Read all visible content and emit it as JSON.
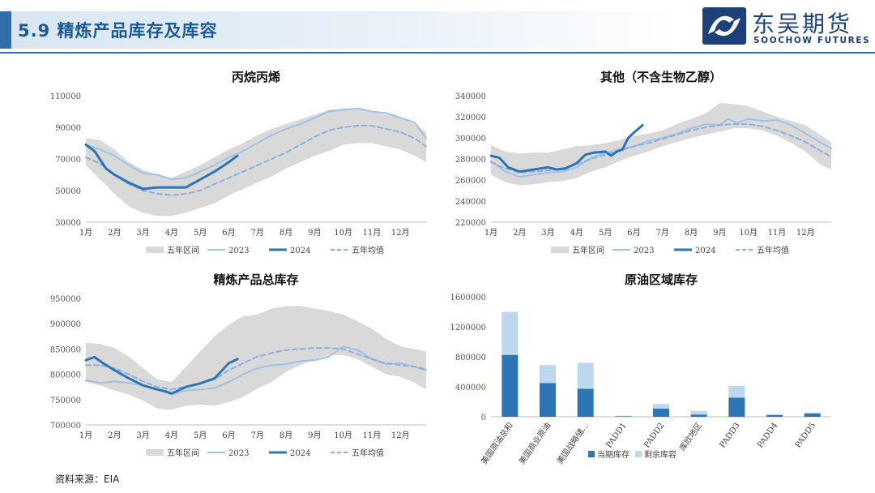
{
  "header": {
    "title": "5.9 精炼产品库存及库容",
    "logo_cn": "东吴期货",
    "logo_en": "SOOCHOW FUTURES"
  },
  "source": "资料来源：EIA",
  "colors": {
    "band": "#d9d9d9",
    "line2023": "#9dc3e6",
    "line2024": "#2e75b6",
    "avg": "#8fb0de",
    "bar_current": "#2e75b6",
    "bar_remaining": "#bdd7ee"
  },
  "chart_data": [
    {
      "id": "propylene",
      "type": "line",
      "title": "丙烷丙烯",
      "ylim": [
        30000,
        110000
      ],
      "yticks": [
        30000,
        50000,
        70000,
        90000,
        110000
      ],
      "ytick_labels": [
        "30000",
        "50000",
        "70000",
        "90000",
        "110000"
      ],
      "xlim": [
        1,
        12.9
      ],
      "x_tick_labels": [
        "1月",
        "2月",
        "3月",
        "4月",
        "5月",
        "6月",
        "7月",
        "8月",
        "9月",
        "10月",
        "11月",
        "12月"
      ],
      "legend": [
        "五年区间",
        "2023",
        "2024",
        "五年均值"
      ],
      "band": {
        "x": [
          1,
          1.5,
          2,
          2.5,
          3,
          3.5,
          4,
          4.5,
          5,
          5.5,
          6,
          6.5,
          7,
          7.5,
          8,
          8.5,
          9,
          9.5,
          10,
          10.5,
          11,
          11.5,
          12,
          12.5,
          12.9
        ],
        "low": [
          66000,
          57000,
          48000,
          40000,
          36000,
          34000,
          34000,
          36000,
          39000,
          42000,
          47000,
          51000,
          55000,
          59000,
          64000,
          68000,
          72000,
          75000,
          79000,
          80000,
          80000,
          78000,
          76000,
          72000,
          68000
        ],
        "high": [
          83000,
          82000,
          76000,
          68000,
          63000,
          60000,
          58000,
          62000,
          66000,
          71000,
          76000,
          80000,
          85000,
          89000,
          92000,
          95000,
          98000,
          101000,
          102000,
          102000,
          100000,
          98000,
          96000,
          92000,
          87000
        ]
      },
      "series": [
        {
          "name": "2023",
          "x": [
            1,
            1.5,
            2,
            2.5,
            3,
            3.5,
            4,
            4.5,
            5,
            5.5,
            6,
            6.5,
            7,
            7.5,
            8,
            8.5,
            9,
            9.5,
            10,
            10.5,
            11,
            11.5,
            12,
            12.5,
            12.9
          ],
          "values": [
            79000,
            76000,
            72000,
            66000,
            61000,
            60000,
            57000,
            58000,
            62000,
            66000,
            71000,
            75000,
            80000,
            85000,
            89000,
            92000,
            96000,
            100000,
            101000,
            102000,
            100000,
            99000,
            96000,
            93000,
            83000
          ]
        },
        {
          "name": "2024",
          "x": [
            1,
            1.3,
            1.7,
            2,
            2.5,
            3,
            3.5,
            4,
            4.5,
            5,
            5.5,
            6,
            6.3
          ],
          "values": [
            79000,
            75000,
            64000,
            60000,
            55000,
            51000,
            52000,
            52000,
            52000,
            57000,
            62000,
            68000,
            72000
          ]
        },
        {
          "name": "五年均值",
          "x": [
            1,
            1.5,
            2,
            2.5,
            3,
            3.5,
            4,
            4.5,
            5,
            5.5,
            6,
            6.5,
            7,
            7.5,
            8,
            8.5,
            9,
            9.5,
            10,
            10.5,
            11,
            11.5,
            12,
            12.5,
            12.9
          ],
          "values": [
            71000,
            67000,
            60000,
            54000,
            50000,
            48000,
            47000,
            48000,
            50000,
            54000,
            58000,
            62000,
            66000,
            70000,
            74000,
            79000,
            84000,
            88000,
            90000,
            91000,
            91000,
            89000,
            87000,
            83000,
            78000
          ]
        }
      ]
    },
    {
      "id": "other",
      "type": "line",
      "title": "其他（不含生物乙醇）",
      "ylim": [
        220000,
        340000
      ],
      "yticks": [
        220000,
        240000,
        260000,
        280000,
        300000,
        320000,
        340000
      ],
      "ytick_labels": [
        "220000",
        "240000",
        "260000",
        "280000",
        "300000",
        "320000",
        "340000"
      ],
      "xlim": [
        1,
        12.9
      ],
      "x_tick_labels": [
        "1月",
        "2月",
        "3月",
        "4月",
        "5月",
        "6月",
        "7月",
        "8月",
        "9月",
        "10月",
        "11月",
        "12月"
      ],
      "legend": [
        "五年区间",
        "2023",
        "2024",
        "五年均值"
      ],
      "band": {
        "x": [
          1,
          1.5,
          2,
          2.5,
          3,
          3.5,
          4,
          4.5,
          5,
          5.5,
          6,
          6.5,
          7,
          7.5,
          8,
          8.5,
          9,
          9.5,
          10,
          10.5,
          11,
          11.5,
          12,
          12.5,
          12.9
        ],
        "low": [
          265000,
          258000,
          255000,
          256000,
          258000,
          259000,
          262000,
          268000,
          272000,
          278000,
          283000,
          287000,
          292000,
          296000,
          300000,
          303000,
          306000,
          309000,
          309000,
          307000,
          302000,
          295000,
          287000,
          275000,
          270000
        ],
        "high": [
          293000,
          287000,
          285000,
          286000,
          286000,
          289000,
          292000,
          293000,
          295000,
          298000,
          302000,
          304000,
          307000,
          313000,
          318000,
          323000,
          333000,
          332000,
          330000,
          325000,
          320000,
          316000,
          312000,
          303000,
          296000
        ]
      },
      "series": [
        {
          "name": "2023",
          "x": [
            1,
            1.5,
            2,
            2.5,
            3,
            3.5,
            4,
            4.5,
            5,
            5.5,
            6,
            6.5,
            7,
            7.5,
            8,
            8.5,
            9,
            9.3,
            9.6,
            10,
            10.5,
            11,
            11.5,
            12,
            12.5,
            12.9
          ],
          "values": [
            278000,
            268000,
            263000,
            265000,
            267000,
            268000,
            272000,
            281000,
            286000,
            289000,
            292000,
            297000,
            300000,
            304000,
            309000,
            313000,
            312000,
            318000,
            314000,
            318000,
            316000,
            317000,
            312000,
            304000,
            296000,
            290000
          ]
        },
        {
          "name": "2024",
          "x": [
            1,
            1.3,
            1.6,
            2,
            2.5,
            3,
            3.3,
            3.6,
            4,
            4.3,
            4.6,
            5,
            5.2,
            5.4,
            5.6,
            5.8,
            6,
            6.3
          ],
          "values": [
            283000,
            281000,
            272000,
            268000,
            270000,
            272000,
            270000,
            271000,
            276000,
            284000,
            286000,
            287000,
            283000,
            287000,
            289000,
            300000,
            305000,
            312000
          ]
        },
        {
          "name": "五年均值",
          "x": [
            1,
            1.5,
            2,
            2.5,
            3,
            3.5,
            4,
            4.5,
            5,
            5.5,
            6,
            6.5,
            7,
            7.5,
            8,
            8.5,
            9,
            9.5,
            10,
            10.5,
            11,
            11.5,
            12,
            12.5,
            12.9
          ],
          "values": [
            277000,
            271000,
            267000,
            268000,
            269000,
            270000,
            275000,
            280000,
            284000,
            288000,
            292000,
            295000,
            299000,
            303000,
            307000,
            310000,
            312000,
            313000,
            313000,
            311000,
            307000,
            302000,
            296000,
            288000,
            282000
          ]
        }
      ]
    },
    {
      "id": "total",
      "type": "line",
      "title": "精炼产品总库存",
      "ylim": [
        700000,
        950000
      ],
      "yticks": [
        700000,
        750000,
        800000,
        850000,
        900000,
        950000
      ],
      "ytick_labels": [
        "700000",
        "750000",
        "800000",
        "850000",
        "900000",
        "950000"
      ],
      "xlim": [
        1,
        12.9
      ],
      "x_tick_labels": [
        "1月",
        "2月",
        "3月",
        "4月",
        "5月",
        "6月",
        "7月",
        "8月",
        "9月",
        "10月",
        "11月",
        "12月"
      ],
      "legend": [
        "五年区间",
        "2023",
        "2024",
        "五年均值"
      ],
      "band": {
        "x": [
          1,
          1.5,
          2,
          2.5,
          3,
          3.5,
          4,
          4.5,
          5,
          5.5,
          6,
          6.5,
          7,
          7.5,
          8,
          8.5,
          9,
          9.5,
          10,
          10.5,
          11,
          11.5,
          12,
          12.5,
          12.9
        ],
        "low": [
          785000,
          778000,
          768000,
          760000,
          748000,
          732000,
          730000,
          738000,
          740000,
          738000,
          745000,
          755000,
          772000,
          785000,
          805000,
          818000,
          830000,
          838000,
          838000,
          830000,
          815000,
          800000,
          795000,
          783000,
          770000
        ],
        "high": [
          862000,
          860000,
          852000,
          835000,
          812000,
          790000,
          785000,
          815000,
          845000,
          875000,
          898000,
          915000,
          918000,
          930000,
          935000,
          935000,
          930000,
          925000,
          918000,
          905000,
          890000,
          870000,
          855000,
          850000,
          845000
        ]
      },
      "series": [
        {
          "name": "2023",
          "x": [
            1,
            1.5,
            2,
            2.5,
            3,
            3.5,
            4,
            4.5,
            5,
            5.5,
            6,
            6.5,
            7,
            7.5,
            8,
            8.5,
            9,
            9.5,
            10,
            10.5,
            11,
            11.5,
            12,
            12.5,
            12.9
          ],
          "values": [
            788000,
            783000,
            786000,
            783000,
            778000,
            770000,
            760000,
            768000,
            770000,
            773000,
            785000,
            800000,
            812000,
            818000,
            820000,
            826000,
            828000,
            835000,
            855000,
            848000,
            830000,
            820000,
            822000,
            815000,
            808000
          ]
        },
        {
          "name": "2024",
          "x": [
            1,
            1.3,
            1.6,
            2,
            2.5,
            3,
            3.5,
            3.8,
            4,
            4.5,
            5,
            5.5,
            5.8,
            6,
            6.3
          ],
          "values": [
            828000,
            834000,
            822000,
            808000,
            792000,
            778000,
            770000,
            766000,
            762000,
            775000,
            782000,
            792000,
            810000,
            822000,
            830000
          ]
        },
        {
          "name": "五年均值",
          "x": [
            1,
            1.5,
            2,
            2.5,
            3,
            3.5,
            4,
            4.5,
            5,
            5.5,
            6,
            6.5,
            7,
            7.5,
            8,
            8.5,
            9,
            9.5,
            10,
            10.5,
            11,
            11.5,
            12,
            12.5,
            12.9
          ],
          "values": [
            818000,
            818000,
            812000,
            800000,
            786000,
            775000,
            770000,
            776000,
            782000,
            790000,
            808000,
            822000,
            835000,
            842000,
            848000,
            850000,
            852000,
            852000,
            850000,
            840000,
            830000,
            822000,
            818000,
            815000,
            810000
          ]
        }
      ]
    },
    {
      "id": "crude-region",
      "type": "bar",
      "stacked": true,
      "title": "原油区域库存",
      "ylim": [
        0,
        1600000
      ],
      "yticks": [
        0,
        400000,
        800000,
        1200000,
        1600000
      ],
      "ytick_labels": [
        "0",
        "400000",
        "800000",
        "1200000",
        "1600000"
      ],
      "categories": [
        "美国原油总和",
        "美国商业原油",
        "美国战略储...",
        "PADD1",
        "PADD2",
        "库欣地区",
        "PADD3",
        "PADD4",
        "PADD5"
      ],
      "legend": [
        "当期库存",
        "剩余库容"
      ],
      "series": [
        {
          "name": "当期库存",
          "values": [
            825000,
            450000,
            375000,
            8000,
            110000,
            30000,
            255000,
            25000,
            45000
          ]
        },
        {
          "name": "剩余库容",
          "values": [
            575000,
            240000,
            345000,
            7000,
            60000,
            45000,
            155000,
            5000,
            10000
          ]
        }
      ]
    }
  ]
}
